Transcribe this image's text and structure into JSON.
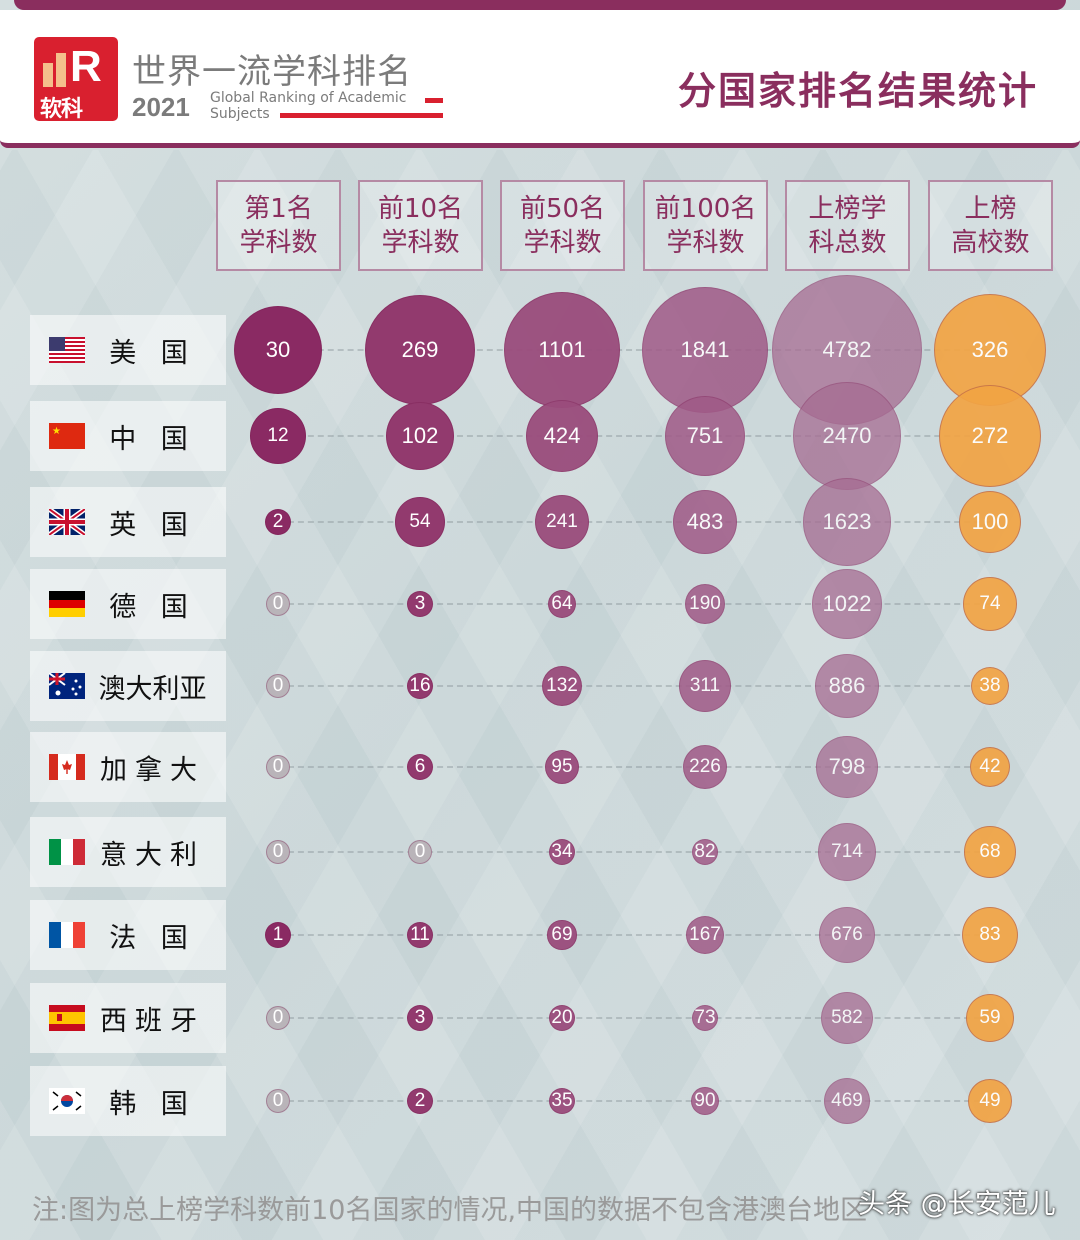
{
  "header": {
    "logo_text": "软科",
    "title": "世界一流学科排名",
    "year": "2021",
    "subtitle_line1": "Global Ranking of Academic",
    "subtitle_line2": "Subjects",
    "right_title": "分国家排名结果统计"
  },
  "chart_data": {
    "type": "bubble-table",
    "columns": [
      "第1名\n学科数",
      "前10名\n学科数",
      "前50名\n学科数",
      "前100名\n学科数",
      "上榜学\n科总数",
      "上榜\n高校数"
    ],
    "rows": [
      {
        "country": "美 国",
        "flag": "us",
        "values": [
          30,
          269,
          1101,
          1841,
          4782,
          326
        ]
      },
      {
        "country": "中 国",
        "flag": "cn",
        "values": [
          12,
          102,
          424,
          751,
          2470,
          272
        ]
      },
      {
        "country": "英 国",
        "flag": "gb",
        "values": [
          2,
          54,
          241,
          483,
          1623,
          100
        ]
      },
      {
        "country": "德 国",
        "flag": "de",
        "values": [
          0,
          3,
          64,
          190,
          1022,
          74
        ]
      },
      {
        "country": "澳大利亚",
        "flag": "au",
        "values": [
          0,
          16,
          132,
          311,
          886,
          38
        ]
      },
      {
        "country": "加拿大",
        "flag": "ca",
        "values": [
          0,
          6,
          95,
          226,
          798,
          42
        ]
      },
      {
        "country": "意大利",
        "flag": "it",
        "values": [
          0,
          0,
          34,
          82,
          714,
          68
        ]
      },
      {
        "country": "法 国",
        "flag": "fr",
        "values": [
          1,
          11,
          69,
          167,
          676,
          83
        ]
      },
      {
        "country": "西班牙",
        "flag": "es",
        "values": [
          0,
          3,
          20,
          73,
          582,
          59
        ]
      },
      {
        "country": "韩 国",
        "flag": "kr",
        "values": [
          0,
          2,
          35,
          90,
          469,
          49
        ]
      }
    ],
    "colors": {
      "col1": "#8a2a63",
      "col2": "#923a6e",
      "col3": "#9a4c7c",
      "col4": "#a05a87",
      "col5": "#a66c92",
      "col6": "#f2a444",
      "zero": "#b9b4b9"
    }
  },
  "footer": {
    "note": "注:图为总上榜学科数前10名国家的情况,中国的数据不包含港澳台地区",
    "watermark": "头条 @长安范儿"
  }
}
